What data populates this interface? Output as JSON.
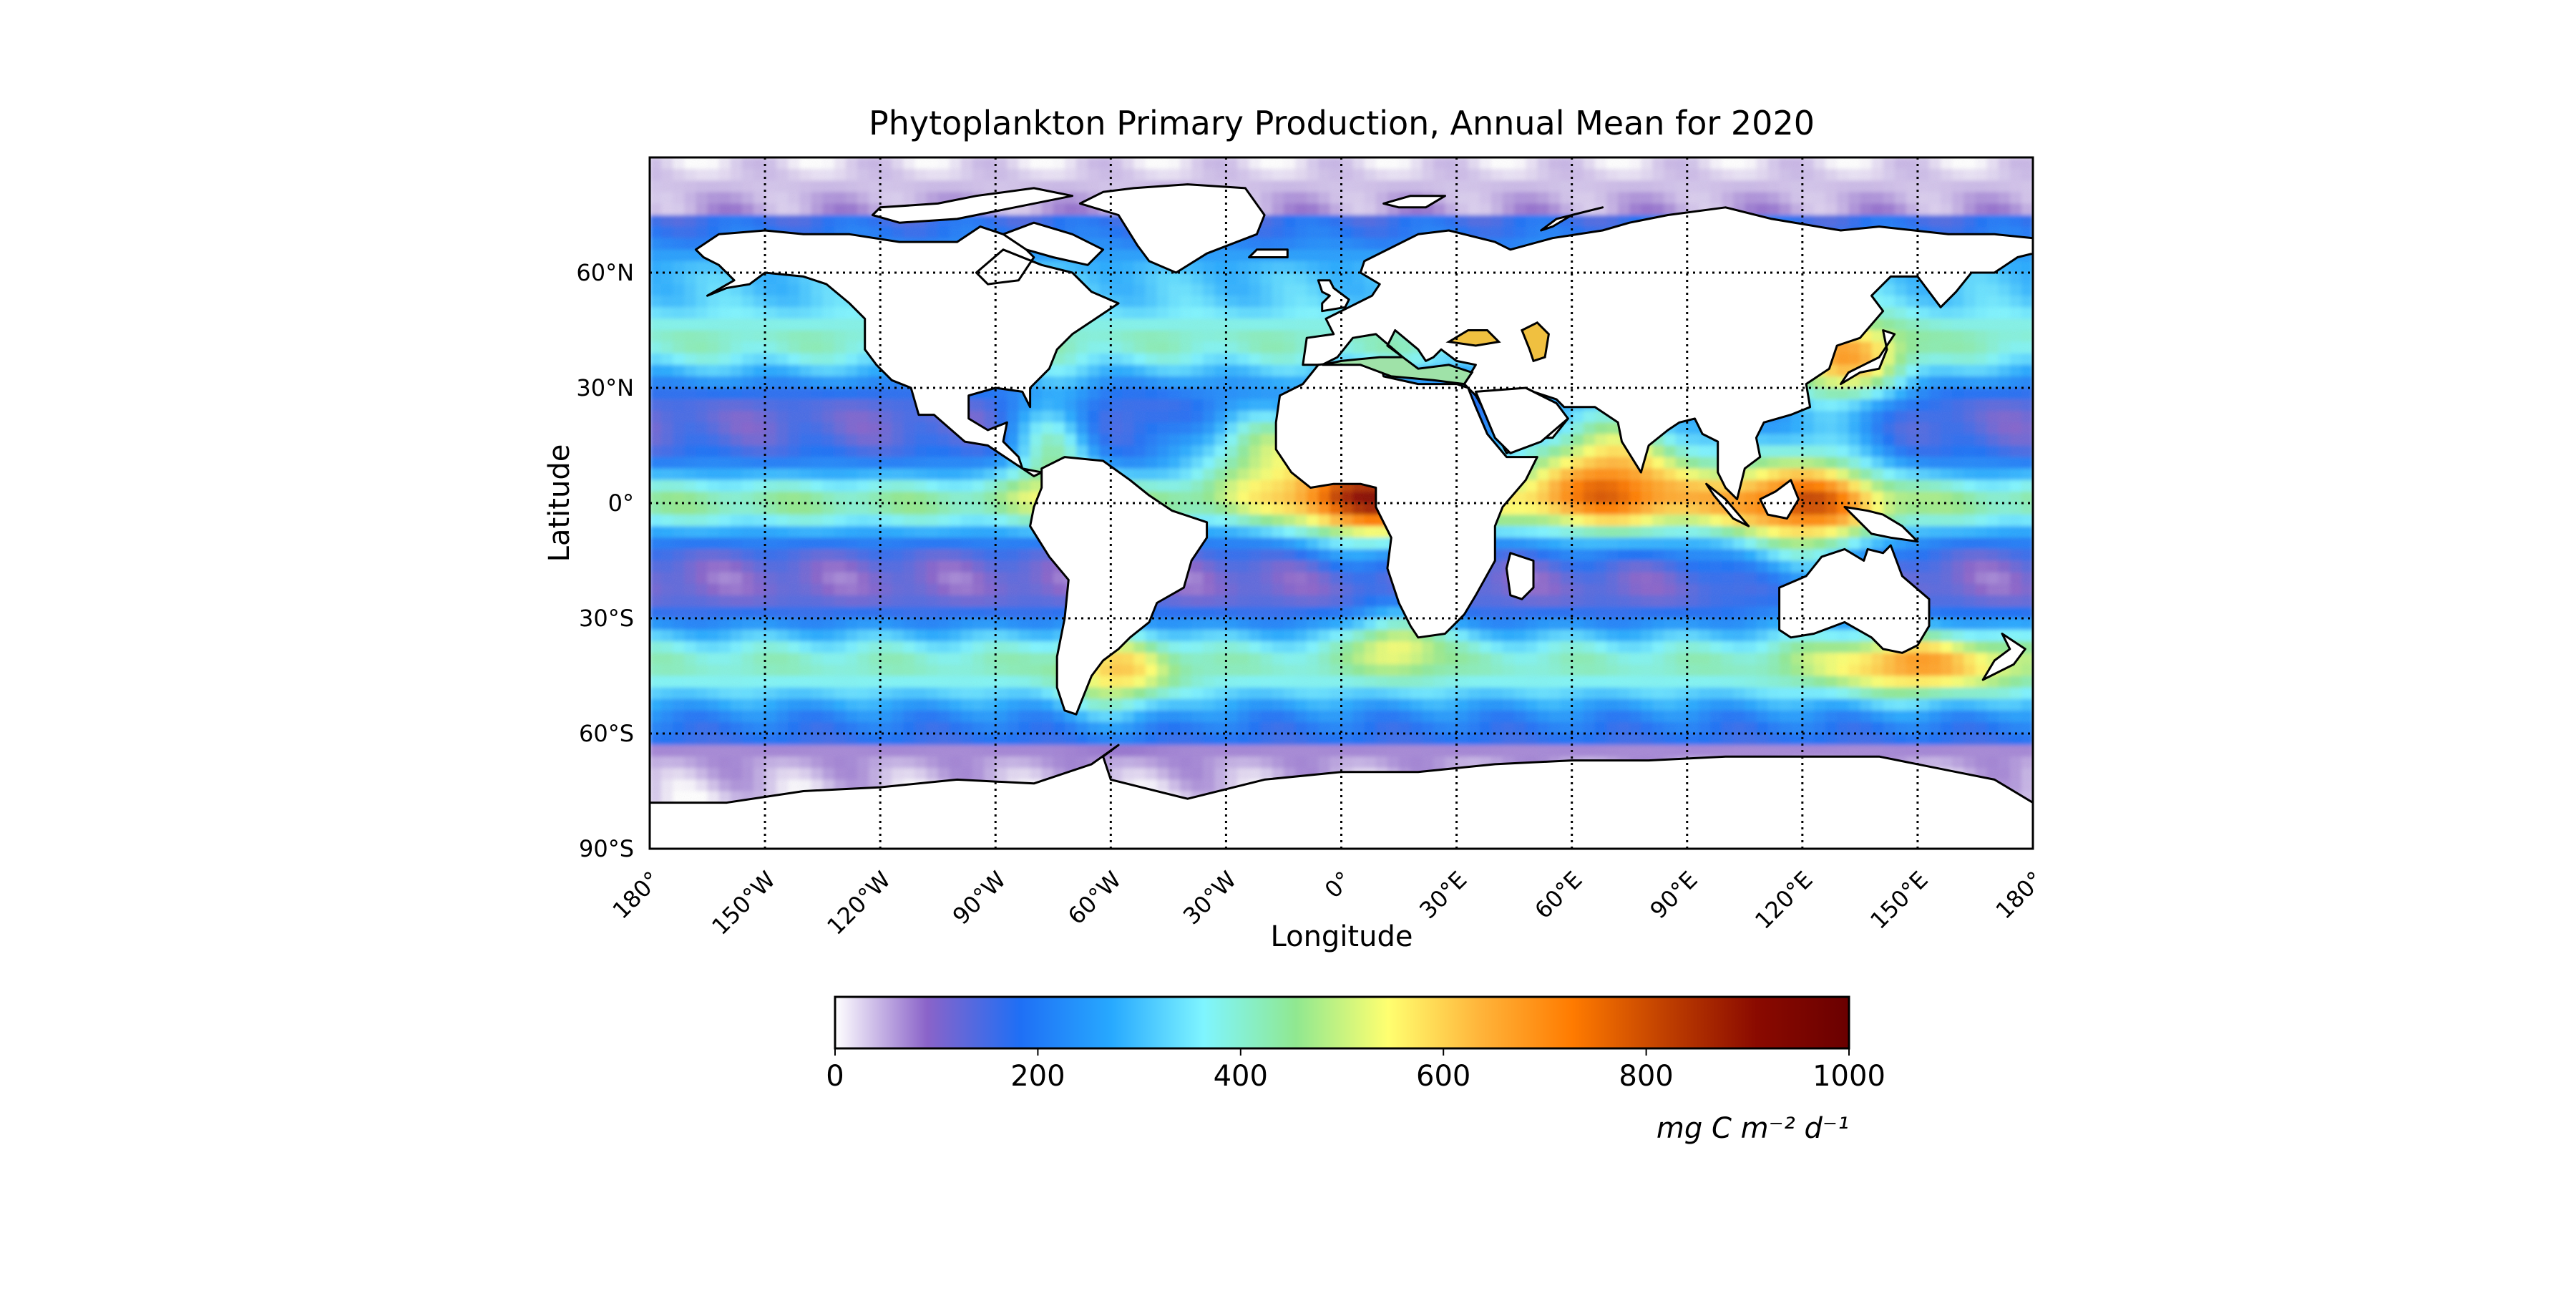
{
  "title": "Phytoplankton Primary Production, Annual Mean for 2020",
  "xlabel": "Longitude",
  "ylabel": "Latitude",
  "chart_data": {
    "type": "heatmap",
    "title": "Phytoplankton Primary Production, Annual Mean for 2020",
    "xlabel": "Longitude",
    "ylabel": "Latitude",
    "xlim": [
      -180,
      180
    ],
    "ylim": [
      -90,
      90
    ],
    "grid": true,
    "x_ticks": [
      {
        "value": -180,
        "label": "180°"
      },
      {
        "value": -150,
        "label": "150°W"
      },
      {
        "value": -120,
        "label": "120°W"
      },
      {
        "value": -90,
        "label": "90°W"
      },
      {
        "value": -60,
        "label": "60°W"
      },
      {
        "value": -30,
        "label": "30°W"
      },
      {
        "value": 0,
        "label": "0°"
      },
      {
        "value": 30,
        "label": "30°E"
      },
      {
        "value": 60,
        "label": "60°E"
      },
      {
        "value": 90,
        "label": "90°E"
      },
      {
        "value": 120,
        "label": "120°E"
      },
      {
        "value": 150,
        "label": "150°E"
      },
      {
        "value": 180,
        "label": "180°"
      }
    ],
    "y_ticks": [
      {
        "value": 60,
        "label": "60°N"
      },
      {
        "value": 30,
        "label": "30°N"
      },
      {
        "value": 0,
        "label": "0°"
      },
      {
        "value": -30,
        "label": "30°S"
      },
      {
        "value": -60,
        "label": "60°S"
      },
      {
        "value": -90,
        "label": "90°S"
      }
    ],
    "colorbar": {
      "min": 0,
      "max": 1000,
      "ticks": [
        0,
        200,
        400,
        600,
        800,
        1000
      ],
      "unit_label": "mg C m⁻² d⁻¹",
      "colors": [
        "#ffffff",
        "#8a63c9",
        "#1f6ff5",
        "#27a9ff",
        "#7ff5ff",
        "#90e890",
        "#ffff70",
        "#ffb43a",
        "#ff7b00",
        "#c04000",
        "#8a0a00",
        "#6a0000"
      ]
    },
    "land_color": "#ffffff",
    "coastline_color": "#000000"
  }
}
